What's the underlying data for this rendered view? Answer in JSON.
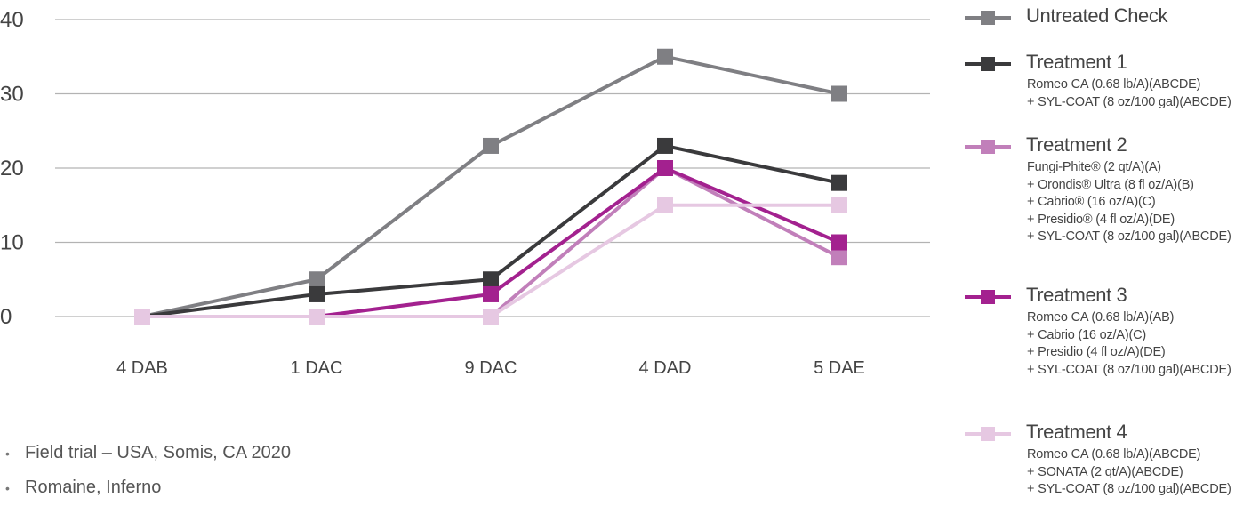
{
  "chart_data": {
    "type": "line",
    "categories": [
      "4 DAB",
      "1 DAC",
      "9 DAC",
      "4 DAD",
      "5 DAE"
    ],
    "ylim": [
      0,
      40
    ],
    "yticks": [
      0,
      10,
      20,
      30,
      40
    ],
    "grid": true,
    "legend_position": "right",
    "series": [
      {
        "name": "Untreated Check",
        "color": "#7f7f83",
        "values": [
          0,
          5,
          23,
          35,
          30
        ],
        "details": []
      },
      {
        "name": "Treatment 1",
        "color": "#3a3a3c",
        "values": [
          0,
          3,
          5,
          23,
          18
        ],
        "details": [
          "Romeo CA (0.68 lb/A)(ABCDE)",
          "+ SYL-COAT (8 oz/100 gal)(ABCDE)"
        ]
      },
      {
        "name": "Treatment 2",
        "color": "#c17fba",
        "values": [
          0,
          0,
          0,
          20,
          8
        ],
        "details": [
          "Fungi-Phite® (2 qt/A)(A)",
          "+ Orondis® Ultra (8 fl oz/A)(B)",
          "+ Cabrio® (16 oz/A)(C)",
          "+ Presidio® (4 fl oz/A)(DE)",
          "+ SYL-COAT (8 oz/100 gal)(ABCDE)"
        ]
      },
      {
        "name": "Treatment 3",
        "color": "#a3218f",
        "values": [
          0,
          0,
          3,
          20,
          10
        ],
        "details": [
          "Romeo CA (0.68 lb/A)(AB)",
          "+ Cabrio (16 oz/A)(C)",
          "+ Presidio (4 fl oz/A)(DE)",
          "+ SYL-COAT (8 oz/100 gal)(ABCDE)"
        ]
      },
      {
        "name": "Treatment 4",
        "color": "#e6c8e2",
        "values": [
          0,
          0,
          0,
          15,
          15
        ],
        "details": [
          "Romeo CA (0.68 lb/A)(ABCDE)",
          "+ SONATA (2 qt/A)(ABCDE)",
          "+ SYL-COAT (8 oz/100 gal)(ABCDE)"
        ]
      }
    ]
  },
  "notes": [
    "Field trial –  USA, Somis, CA 2020",
    "Romaine, Inferno"
  ],
  "bullet_glyph": "•"
}
